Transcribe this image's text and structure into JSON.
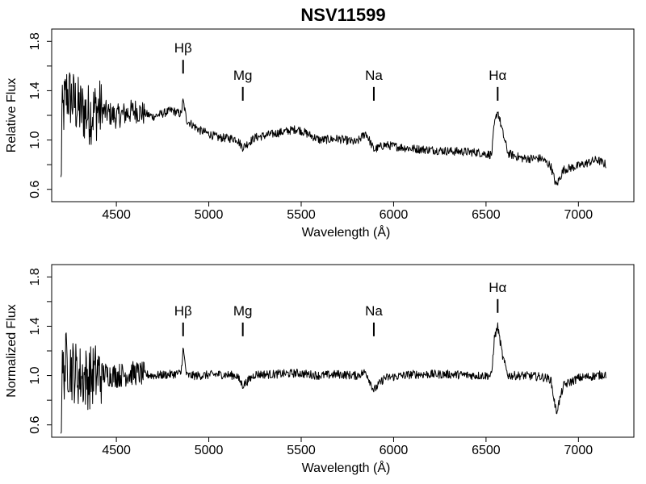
{
  "figure_title": "NSV11599",
  "chart_data": [
    {
      "type": "line",
      "title": "NSV11599",
      "xlabel": "Wavelength (Å)",
      "ylabel": "Relative Flux",
      "xlim": [
        4150,
        7300
      ],
      "ylim": [
        0.5,
        1.9
      ],
      "x_ticks": [
        4500,
        5000,
        5500,
        6000,
        6500,
        7000
      ],
      "x_tick_labels": [
        "4500",
        "5000",
        "5500",
        "6000",
        "6500",
        "7000"
      ],
      "y_ticks": [
        0.6,
        1.0,
        1.4,
        1.8
      ],
      "y_tick_labels": [
        "0.6",
        "1.0",
        "1.4",
        "1.8"
      ],
      "grid": false,
      "series": [
        {
          "x": [
            4200,
            4230,
            4260,
            4300,
            4350,
            4400,
            4500,
            4600,
            4700,
            4800,
            4850,
            4861,
            4880,
            4950,
            5050,
            5150,
            5184,
            5250,
            5350,
            5480,
            5600,
            5700,
            5800,
            5850,
            5893,
            5950,
            6100,
            6300,
            6450,
            6530,
            6545,
            6563,
            6590,
            6620,
            6700,
            6800,
            6850,
            6880,
            6920,
            7000,
            7100,
            7150
          ],
          "y": [
            1.12,
            1.38,
            1.33,
            1.25,
            1.21,
            1.25,
            1.19,
            1.24,
            1.19,
            1.24,
            1.21,
            1.32,
            1.16,
            1.08,
            1.02,
            1.01,
            0.94,
            1.02,
            1.05,
            1.09,
            1.0,
            1.01,
            0.98,
            1.06,
            0.92,
            0.96,
            0.93,
            0.91,
            0.9,
            0.88,
            1.12,
            1.24,
            1.06,
            0.89,
            0.85,
            0.85,
            0.79,
            0.63,
            0.76,
            0.79,
            0.84,
            0.8
          ]
        }
      ],
      "annotations": [
        {
          "label": "Hβ",
          "x": 4861,
          "y_top": 1.65
        },
        {
          "label": "Mg",
          "x": 5184,
          "y_top": 1.43
        },
        {
          "label": "Na",
          "x": 5893,
          "y_top": 1.43
        },
        {
          "label": "Hα",
          "x": 6563,
          "y_top": 1.43
        }
      ]
    },
    {
      "type": "line",
      "title": "",
      "xlabel": "Wavelength (Å)",
      "ylabel": "Normalized Flux",
      "xlim": [
        4150,
        7300
      ],
      "ylim": [
        0.5,
        1.9
      ],
      "x_ticks": [
        4500,
        5000,
        5500,
        6000,
        6500,
        7000
      ],
      "x_tick_labels": [
        "4500",
        "5000",
        "5500",
        "6000",
        "6500",
        "7000"
      ],
      "y_ticks": [
        0.6,
        1.0,
        1.4,
        1.8
      ],
      "y_tick_labels": [
        "0.6",
        "1.0",
        "1.4",
        "1.8"
      ],
      "grid": false,
      "series": [
        {
          "x": [
            4200,
            4230,
            4260,
            4300,
            4350,
            4400,
            4500,
            4600,
            4700,
            4800,
            4850,
            4861,
            4880,
            4950,
            5050,
            5150,
            5184,
            5250,
            5350,
            5480,
            5600,
            5700,
            5800,
            5850,
            5893,
            5950,
            6100,
            6300,
            6450,
            6530,
            6545,
            6563,
            6590,
            6620,
            6700,
            6800,
            6850,
            6880,
            6920,
            7000,
            7100,
            7150
          ],
          "y": [
            0.95,
            1.12,
            1.05,
            1.0,
            0.98,
            1.02,
            1.0,
            1.02,
            1.0,
            1.01,
            1.02,
            1.22,
            1.0,
            1.0,
            1.01,
            1.0,
            0.92,
            1.01,
            1.01,
            1.02,
            1.0,
            1.01,
            1.0,
            1.03,
            0.88,
            0.98,
            1.01,
            1.01,
            1.0,
            1.0,
            1.3,
            1.4,
            1.15,
            1.0,
            1.0,
            0.99,
            0.97,
            0.7,
            0.92,
            0.98,
            1.0,
            1.01
          ]
        }
      ],
      "annotations": [
        {
          "label": "Hβ",
          "x": 4861,
          "y_top": 1.43
        },
        {
          "label": "Mg",
          "x": 5184,
          "y_top": 1.43
        },
        {
          "label": "Na",
          "x": 5893,
          "y_top": 1.43
        },
        {
          "label": "Hα",
          "x": 6563,
          "y_top": 1.62
        }
      ]
    }
  ]
}
